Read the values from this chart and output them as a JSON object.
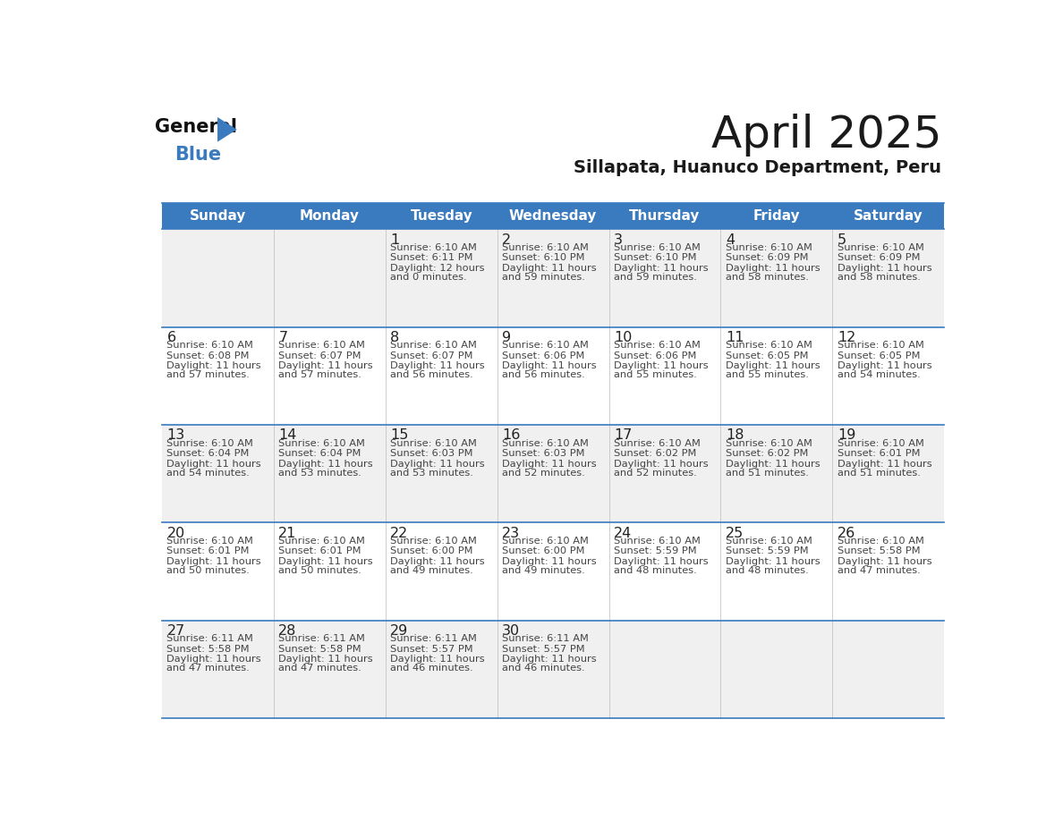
{
  "title": "April 2025",
  "subtitle": "Sillapata, Huanuco Department, Peru",
  "days_of_week": [
    "Sunday",
    "Monday",
    "Tuesday",
    "Wednesday",
    "Thursday",
    "Friday",
    "Saturday"
  ],
  "header_bg": "#3a7abf",
  "header_text": "#ffffff",
  "row_bg_odd": "#f0f0f0",
  "row_bg_even": "#ffffff",
  "title_color": "#1a1a1a",
  "subtitle_color": "#1a1a1a",
  "day_number_color": "#222222",
  "cell_text_color": "#444444",
  "blue_line_color": "#3a7abf",
  "logo_general_color": "#111111",
  "logo_blue_color": "#3a7abf",
  "logo_triangle_color": "#3a7abf",
  "calendar": [
    [
      {
        "day": "",
        "sunrise": "",
        "sunset": "",
        "daylight1": "",
        "daylight2": ""
      },
      {
        "day": "",
        "sunrise": "",
        "sunset": "",
        "daylight1": "",
        "daylight2": ""
      },
      {
        "day": "1",
        "sunrise": "Sunrise: 6:10 AM",
        "sunset": "Sunset: 6:11 PM",
        "daylight1": "Daylight: 12 hours",
        "daylight2": "and 0 minutes."
      },
      {
        "day": "2",
        "sunrise": "Sunrise: 6:10 AM",
        "sunset": "Sunset: 6:10 PM",
        "daylight1": "Daylight: 11 hours",
        "daylight2": "and 59 minutes."
      },
      {
        "day": "3",
        "sunrise": "Sunrise: 6:10 AM",
        "sunset": "Sunset: 6:10 PM",
        "daylight1": "Daylight: 11 hours",
        "daylight2": "and 59 minutes."
      },
      {
        "day": "4",
        "sunrise": "Sunrise: 6:10 AM",
        "sunset": "Sunset: 6:09 PM",
        "daylight1": "Daylight: 11 hours",
        "daylight2": "and 58 minutes."
      },
      {
        "day": "5",
        "sunrise": "Sunrise: 6:10 AM",
        "sunset": "Sunset: 6:09 PM",
        "daylight1": "Daylight: 11 hours",
        "daylight2": "and 58 minutes."
      }
    ],
    [
      {
        "day": "6",
        "sunrise": "Sunrise: 6:10 AM",
        "sunset": "Sunset: 6:08 PM",
        "daylight1": "Daylight: 11 hours",
        "daylight2": "and 57 minutes."
      },
      {
        "day": "7",
        "sunrise": "Sunrise: 6:10 AM",
        "sunset": "Sunset: 6:07 PM",
        "daylight1": "Daylight: 11 hours",
        "daylight2": "and 57 minutes."
      },
      {
        "day": "8",
        "sunrise": "Sunrise: 6:10 AM",
        "sunset": "Sunset: 6:07 PM",
        "daylight1": "Daylight: 11 hours",
        "daylight2": "and 56 minutes."
      },
      {
        "day": "9",
        "sunrise": "Sunrise: 6:10 AM",
        "sunset": "Sunset: 6:06 PM",
        "daylight1": "Daylight: 11 hours",
        "daylight2": "and 56 minutes."
      },
      {
        "day": "10",
        "sunrise": "Sunrise: 6:10 AM",
        "sunset": "Sunset: 6:06 PM",
        "daylight1": "Daylight: 11 hours",
        "daylight2": "and 55 minutes."
      },
      {
        "day": "11",
        "sunrise": "Sunrise: 6:10 AM",
        "sunset": "Sunset: 6:05 PM",
        "daylight1": "Daylight: 11 hours",
        "daylight2": "and 55 minutes."
      },
      {
        "day": "12",
        "sunrise": "Sunrise: 6:10 AM",
        "sunset": "Sunset: 6:05 PM",
        "daylight1": "Daylight: 11 hours",
        "daylight2": "and 54 minutes."
      }
    ],
    [
      {
        "day": "13",
        "sunrise": "Sunrise: 6:10 AM",
        "sunset": "Sunset: 6:04 PM",
        "daylight1": "Daylight: 11 hours",
        "daylight2": "and 54 minutes."
      },
      {
        "day": "14",
        "sunrise": "Sunrise: 6:10 AM",
        "sunset": "Sunset: 6:04 PM",
        "daylight1": "Daylight: 11 hours",
        "daylight2": "and 53 minutes."
      },
      {
        "day": "15",
        "sunrise": "Sunrise: 6:10 AM",
        "sunset": "Sunset: 6:03 PM",
        "daylight1": "Daylight: 11 hours",
        "daylight2": "and 53 minutes."
      },
      {
        "day": "16",
        "sunrise": "Sunrise: 6:10 AM",
        "sunset": "Sunset: 6:03 PM",
        "daylight1": "Daylight: 11 hours",
        "daylight2": "and 52 minutes."
      },
      {
        "day": "17",
        "sunrise": "Sunrise: 6:10 AM",
        "sunset": "Sunset: 6:02 PM",
        "daylight1": "Daylight: 11 hours",
        "daylight2": "and 52 minutes."
      },
      {
        "day": "18",
        "sunrise": "Sunrise: 6:10 AM",
        "sunset": "Sunset: 6:02 PM",
        "daylight1": "Daylight: 11 hours",
        "daylight2": "and 51 minutes."
      },
      {
        "day": "19",
        "sunrise": "Sunrise: 6:10 AM",
        "sunset": "Sunset: 6:01 PM",
        "daylight1": "Daylight: 11 hours",
        "daylight2": "and 51 minutes."
      }
    ],
    [
      {
        "day": "20",
        "sunrise": "Sunrise: 6:10 AM",
        "sunset": "Sunset: 6:01 PM",
        "daylight1": "Daylight: 11 hours",
        "daylight2": "and 50 minutes."
      },
      {
        "day": "21",
        "sunrise": "Sunrise: 6:10 AM",
        "sunset": "Sunset: 6:01 PM",
        "daylight1": "Daylight: 11 hours",
        "daylight2": "and 50 minutes."
      },
      {
        "day": "22",
        "sunrise": "Sunrise: 6:10 AM",
        "sunset": "Sunset: 6:00 PM",
        "daylight1": "Daylight: 11 hours",
        "daylight2": "and 49 minutes."
      },
      {
        "day": "23",
        "sunrise": "Sunrise: 6:10 AM",
        "sunset": "Sunset: 6:00 PM",
        "daylight1": "Daylight: 11 hours",
        "daylight2": "and 49 minutes."
      },
      {
        "day": "24",
        "sunrise": "Sunrise: 6:10 AM",
        "sunset": "Sunset: 5:59 PM",
        "daylight1": "Daylight: 11 hours",
        "daylight2": "and 48 minutes."
      },
      {
        "day": "25",
        "sunrise": "Sunrise: 6:10 AM",
        "sunset": "Sunset: 5:59 PM",
        "daylight1": "Daylight: 11 hours",
        "daylight2": "and 48 minutes."
      },
      {
        "day": "26",
        "sunrise": "Sunrise: 6:10 AM",
        "sunset": "Sunset: 5:58 PM",
        "daylight1": "Daylight: 11 hours",
        "daylight2": "and 47 minutes."
      }
    ],
    [
      {
        "day": "27",
        "sunrise": "Sunrise: 6:11 AM",
        "sunset": "Sunset: 5:58 PM",
        "daylight1": "Daylight: 11 hours",
        "daylight2": "and 47 minutes."
      },
      {
        "day": "28",
        "sunrise": "Sunrise: 6:11 AM",
        "sunset": "Sunset: 5:58 PM",
        "daylight1": "Daylight: 11 hours",
        "daylight2": "and 47 minutes."
      },
      {
        "day": "29",
        "sunrise": "Sunrise: 6:11 AM",
        "sunset": "Sunset: 5:57 PM",
        "daylight1": "Daylight: 11 hours",
        "daylight2": "and 46 minutes."
      },
      {
        "day": "30",
        "sunrise": "Sunrise: 6:11 AM",
        "sunset": "Sunset: 5:57 PM",
        "daylight1": "Daylight: 11 hours",
        "daylight2": "and 46 minutes."
      },
      {
        "day": "",
        "sunrise": "",
        "sunset": "",
        "daylight1": "",
        "daylight2": ""
      },
      {
        "day": "",
        "sunrise": "",
        "sunset": "",
        "daylight1": "",
        "daylight2": ""
      },
      {
        "day": "",
        "sunrise": "",
        "sunset": "",
        "daylight1": "",
        "daylight2": ""
      }
    ]
  ]
}
